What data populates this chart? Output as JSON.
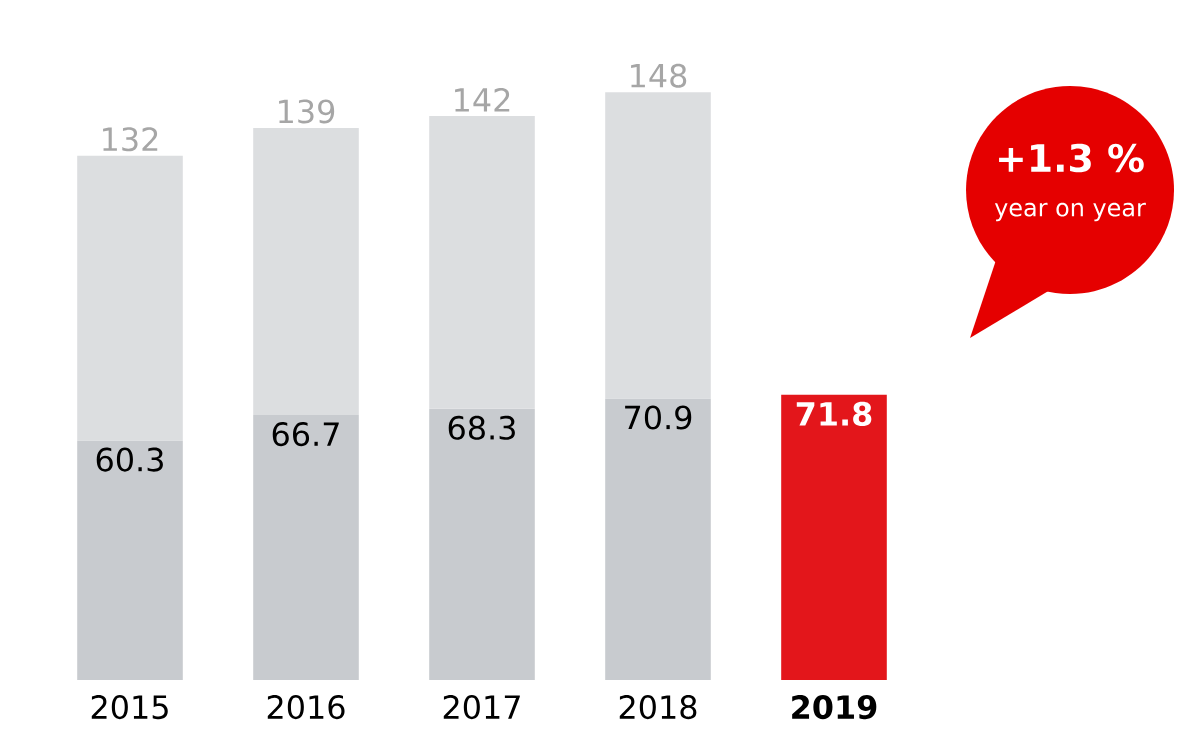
{
  "chart_data": {
    "type": "bar",
    "stacked": true,
    "categories": [
      "2015",
      "2016",
      "2017",
      "2018",
      "2019"
    ],
    "series": [
      {
        "colors": [
          "#c8cbcf",
          "#c8cbcf",
          "#c8cbcf",
          "#c8cbcf",
          "#e3161b"
        ],
        "values": [
          60.3,
          66.7,
          68.3,
          70.9,
          71.8
        ],
        "value_labels": [
          "60.3",
          "66.7",
          "68.3",
          "70.9",
          "71.8"
        ]
      },
      {
        "color": "#dcdee0",
        "values": [
          71.7,
          72.3,
          73.7,
          77.1,
          null
        ]
      }
    ],
    "totals": [
      "132",
      "139",
      "142",
      "148",
      null
    ],
    "annotations": [
      "+1.3 %",
      "year on year"
    ]
  }
}
